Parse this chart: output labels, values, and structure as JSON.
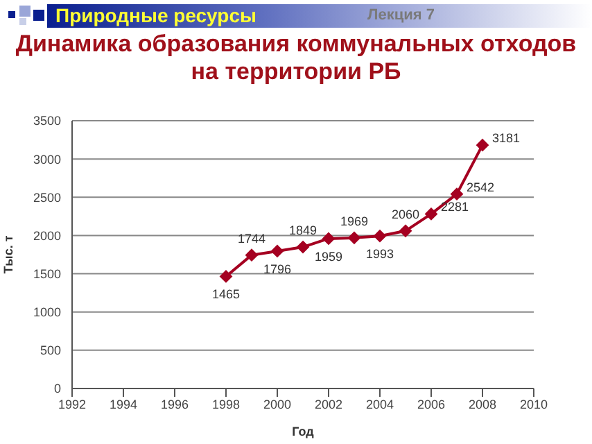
{
  "chart_data": {
    "type": "line",
    "title": "Динамика образования коммунальных отходов на территории РБ",
    "annotations": [
      "Природные ресурсы",
      "Лекция 7"
    ],
    "xlabel": "Год",
    "ylabel": "Тыс. т",
    "x": [
      1998,
      1999,
      2000,
      2001,
      2002,
      2003,
      2004,
      2005,
      2006,
      2007,
      2008
    ],
    "series": [
      {
        "color": "#a50021",
        "values": [
          1465,
          1744,
          1796,
          1849,
          1959,
          1969,
          1993,
          2060,
          2281,
          2542,
          3181
        ]
      }
    ],
    "xlim": [
      1992,
      2010
    ],
    "xticks": [
      1992,
      1994,
      1996,
      1998,
      2000,
      2002,
      2004,
      2006,
      2008,
      2010
    ],
    "ylim": [
      0,
      3500
    ],
    "yticks": [
      0,
      500,
      1000,
      1500,
      2000,
      2500,
      3000,
      3500
    ],
    "grid": "y",
    "marker": "diamond",
    "line_style": "solid",
    "data_labels": true,
    "legend": false
  }
}
